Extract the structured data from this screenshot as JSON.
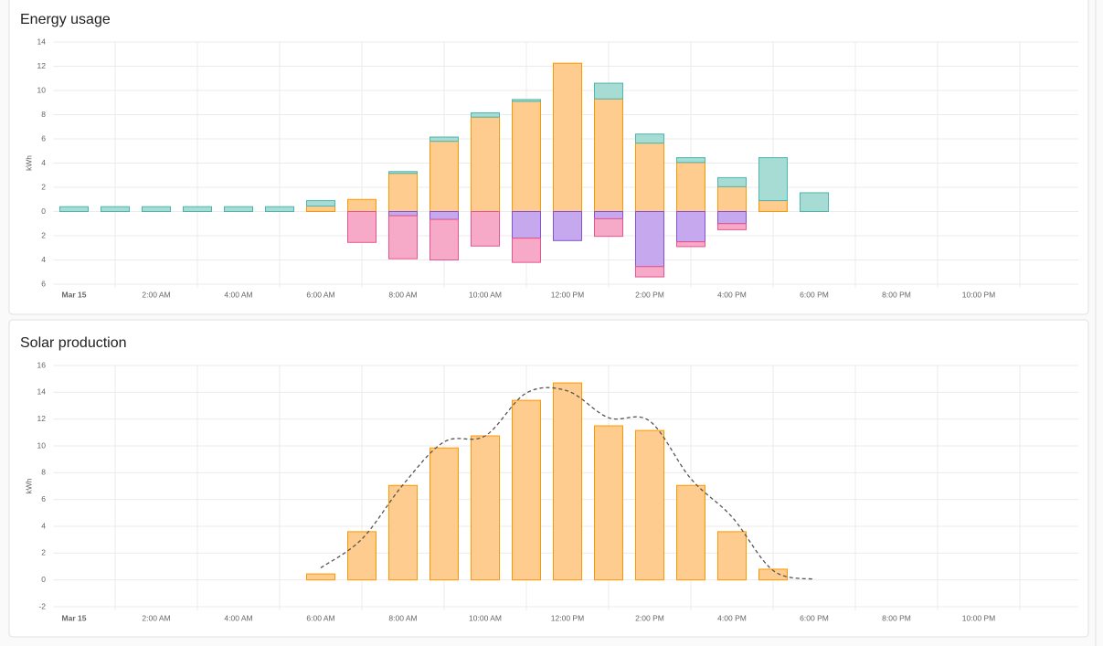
{
  "chart_data": [
    {
      "type": "bar",
      "stacked": true,
      "title": "Energy usage",
      "y_label": "kWh",
      "categories": [
        "Mar 15",
        null,
        "2:00 AM",
        null,
        "4:00 AM",
        null,
        "6:00 AM",
        null,
        "8:00 AM",
        null,
        "10:00 AM",
        null,
        "12:00 PM",
        null,
        "2:00 PM",
        null,
        "4:00 PM",
        null,
        "6:00 PM",
        null,
        "8:00 PM",
        null,
        "10:00 PM",
        null
      ],
      "series": [
        {
          "color": "#ffcc8f",
          "border_color": "#ff9800",
          "values": [
            0,
            0,
            0,
            0,
            0,
            0,
            0.45,
            1.0,
            3.15,
            5.8,
            7.8,
            9.1,
            12.25,
            9.3,
            5.65,
            4.05,
            2.05,
            0.9,
            0,
            0,
            0,
            0,
            0,
            0
          ]
        },
        {
          "color": "#a6dcd4",
          "border_color": "#4db6ac",
          "values": [
            0.4,
            0.4,
            0.4,
            0.4,
            0.4,
            0.4,
            0.45,
            0,
            0.15,
            0.35,
            0.35,
            0.15,
            0,
            1.3,
            0.75,
            0.4,
            0.75,
            3.55,
            1.55,
            0,
            0,
            0,
            0,
            0
          ]
        },
        {
          "color": "#c6a8ee",
          "border_color": "#8353d4",
          "values": [
            0,
            0,
            0,
            0,
            0,
            0,
            0,
            0,
            -0.35,
            -0.65,
            0,
            -2.2,
            -2.4,
            -0.6,
            -4.55,
            -2.5,
            -1.0,
            0,
            0,
            0,
            0,
            0,
            0,
            0
          ]
        },
        {
          "color": "#f7aac8",
          "border_color": "#e8548e",
          "values": [
            0,
            0,
            0,
            0,
            0,
            0,
            0,
            -2.55,
            -3.55,
            -3.35,
            -2.85,
            -2.0,
            0,
            -1.45,
            -0.85,
            -0.4,
            -0.5,
            0,
            0,
            0,
            0,
            0,
            0,
            0
          ]
        }
      ],
      "ylim": [
        -6,
        14
      ],
      "yticks": [
        {
          "value": -6,
          "label": "6"
        },
        {
          "value": -4,
          "label": "4"
        },
        {
          "value": -2,
          "label": "2"
        },
        0,
        2,
        4,
        6,
        8,
        10,
        12,
        14
      ],
      "grid": true
    },
    {
      "type": "bar",
      "title": "Solar production",
      "y_label": "kWh",
      "categories": [
        "Mar 15",
        null,
        "2:00 AM",
        null,
        "4:00 AM",
        null,
        "6:00 AM",
        null,
        "8:00 AM",
        null,
        "10:00 AM",
        null,
        "12:00 PM",
        null,
        "2:00 PM",
        null,
        "4:00 PM",
        null,
        "6:00 PM",
        null,
        "8:00 PM",
        null,
        "10:00 PM",
        null
      ],
      "series": [
        {
          "color": "#ffcc8f",
          "border_color": "#ff9800",
          "values": [
            0,
            0,
            0,
            0,
            0,
            0,
            0.45,
            3.6,
            7.05,
            9.85,
            10.75,
            13.4,
            14.7,
            11.5,
            11.15,
            7.05,
            3.6,
            0.8,
            0,
            0,
            0,
            0,
            0,
            0
          ]
        },
        {
          "type": "line",
          "dashed": true,
          "color": "#555555",
          "values": [
            null,
            null,
            null,
            null,
            null,
            null,
            0.9,
            3.05,
            7.1,
            10.3,
            10.75,
            13.95,
            14.1,
            12.1,
            11.85,
            7.55,
            4.7,
            0.7,
            0.05,
            null,
            null,
            null,
            null,
            null
          ]
        }
      ],
      "ylim": [
        -2,
        16
      ],
      "yticks": [
        -2,
        0,
        2,
        4,
        6,
        8,
        10,
        12,
        14,
        16
      ],
      "grid": true
    }
  ]
}
